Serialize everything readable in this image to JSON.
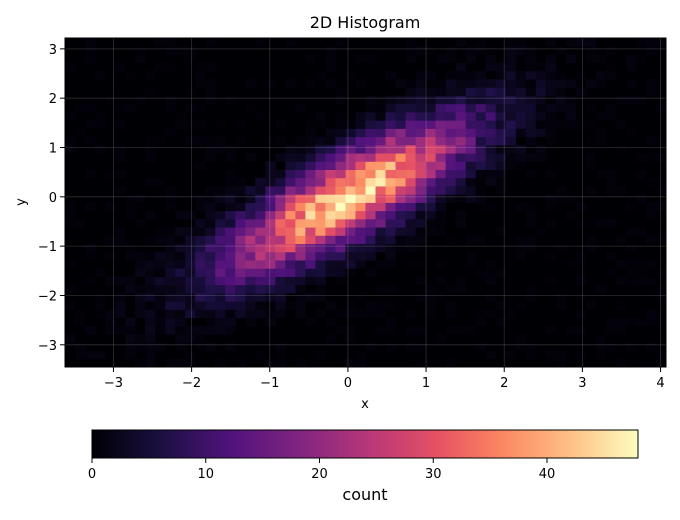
{
  "chart_data": {
    "type": "heatmap",
    "title": "2D Histogram",
    "xlabel": "x",
    "ylabel": "y",
    "xlim": [
      -3.62,
      4.07
    ],
    "ylim": [
      -3.45,
      3.22
    ],
    "xticks": [
      -3,
      -2,
      -1,
      0,
      1,
      2,
      3,
      4
    ],
    "yticks": [
      -3,
      -2,
      -1,
      0,
      1,
      2,
      3
    ],
    "xtick_labels": [
      "−3",
      "−2",
      "−1",
      "0",
      "1",
      "2",
      "3",
      "4"
    ],
    "ytick_labels": [
      "−3",
      "−2",
      "−1",
      "0",
      "1",
      "2",
      "3"
    ],
    "bins": [
      60,
      40
    ],
    "grid": true,
    "colormap": "magma",
    "colorbar": {
      "label": "count",
      "orientation": "horizontal",
      "placement": "bottom",
      "range": [
        0,
        48
      ],
      "ticks": [
        0,
        10,
        20,
        30,
        40
      ],
      "tick_labels": [
        "0",
        "10",
        "20",
        "30",
        "40"
      ]
    },
    "distribution": {
      "description_source": "bivariate normal, correlated",
      "mean": [
        0,
        0
      ],
      "std": [
        1,
        1
      ],
      "correlation": 0.82,
      "peak_count": 48,
      "peak_location": [
        0.5,
        0.6
      ]
    }
  }
}
